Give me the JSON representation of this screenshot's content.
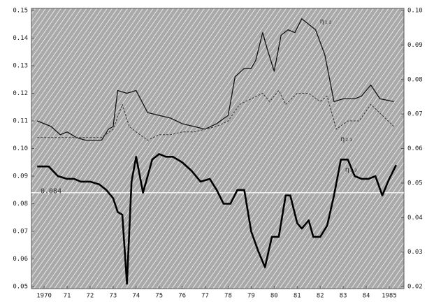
{
  "chart_data": {
    "type": "line",
    "xlim": [
      1969.45,
      1985.64
    ],
    "xticks": [
      1970,
      {
        "value": 1971,
        "label": "71"
      },
      {
        "value": 1972,
        "label": "72"
      },
      {
        "value": 1973,
        "label": "73"
      },
      {
        "value": 1974,
        "label": "74"
      },
      {
        "value": 1975,
        "label": "75"
      },
      {
        "value": 1976,
        "label": "76"
      },
      {
        "value": 1977,
        "label": "77"
      },
      {
        "value": 1978,
        "label": "78"
      },
      {
        "value": 1979,
        "label": "79"
      },
      {
        "value": 1980,
        "label": "80"
      },
      {
        "value": 1981,
        "label": "81"
      },
      {
        "value": 1982,
        "label": "82"
      },
      {
        "value": 1983,
        "label": "83"
      },
      {
        "value": 1984,
        "label": "84"
      },
      1985
    ],
    "ylim": [
      0.05,
      0.15
    ],
    "yticks": [
      0.05,
      0.06,
      0.07,
      0.08,
      0.09,
      {
        "value": 0.1,
        "label": "0.10"
      },
      0.11,
      0.12,
      0.13,
      0.14,
      0.15
    ],
    "y2lim": [
      0.02,
      0.1
    ],
    "y2ticks": [
      0.02,
      0.03,
      0.04,
      0.05,
      0.06,
      0.07,
      0.08,
      0.09,
      {
        "value": 0.1,
        "label": "0.10"
      }
    ],
    "reference_line": 0.084,
    "series": [
      {
        "name": "η₁₂",
        "color": "#111",
        "style": "solid",
        "width": 1.3,
        "x": [
          1969.7,
          1970.3,
          1970.7,
          1971,
          1971.4,
          1971.8,
          1972.5,
          1972.8,
          1973,
          1973.2,
          1973.6,
          1974,
          1974.5,
          1975,
          1975.5,
          1976,
          1976.5,
          1977,
          1977.5,
          1978,
          1978.3,
          1978.7,
          1979,
          1979.2,
          1979.5,
          1979.7,
          1980,
          1980.3,
          1980.6,
          1980.9,
          1981.2,
          1981.5,
          1981.8,
          1982.2,
          1982.6,
          1983,
          1983.5,
          1983.8,
          1984.2,
          1984.6,
          1985.2
        ],
        "values": [
          0.11,
          0.108,
          0.105,
          0.106,
          0.104,
          0.103,
          0.103,
          0.107,
          0.108,
          0.121,
          0.12,
          0.121,
          0.113,
          0.112,
          0.111,
          0.109,
          0.108,
          0.107,
          0.109,
          0.112,
          0.126,
          0.129,
          0.129,
          0.132,
          0.142,
          0.136,
          0.128,
          0.141,
          0.143,
          0.142,
          0.147,
          0.145,
          0.143,
          0.134,
          0.117,
          0.118,
          0.118,
          0.119,
          0.123,
          0.118,
          0.117
        ]
      },
      {
        "name": "η₂₁",
        "color": "#333",
        "style": "dashed",
        "width": 1,
        "x": [
          1969.7,
          1970.5,
          1971.5,
          1972.5,
          1973,
          1973.4,
          1973.7,
          1974,
          1974.5,
          1975,
          1975.5,
          1976,
          1976.5,
          1977,
          1977.5,
          1978,
          1978.5,
          1979,
          1979.5,
          1979.8,
          1980.2,
          1980.5,
          1981,
          1981.5,
          1982,
          1982.3,
          1982.7,
          1983.2,
          1983.7,
          1984.2,
          1984.7,
          1985.2
        ],
        "values": [
          0.104,
          0.104,
          0.104,
          0.104,
          0.107,
          0.116,
          0.108,
          0.106,
          0.103,
          0.105,
          0.105,
          0.106,
          0.106,
          0.107,
          0.108,
          0.11,
          0.116,
          0.118,
          0.12,
          0.117,
          0.121,
          0.116,
          0.12,
          0.12,
          0.117,
          0.119,
          0.107,
          0.11,
          0.11,
          0.116,
          0.112,
          0.108
        ]
      },
      {
        "name": "η₁₃",
        "color": "#000",
        "style": "solid",
        "width": 2.6,
        "x": [
          1969.7,
          1970.2,
          1970.6,
          1971,
          1971.3,
          1971.6,
          1972,
          1972.4,
          1972.7,
          1973,
          1973.2,
          1973.4,
          1973.6,
          1973.8,
          1974,
          1974.3,
          1974.7,
          1975,
          1975.3,
          1975.6,
          1976,
          1976.4,
          1976.8,
          1977.2,
          1977.5,
          1977.8,
          1978.1,
          1978.4,
          1978.7,
          1979,
          1979.3,
          1979.6,
          1979.9,
          1980.2,
          1980.5,
          1980.7,
          1981,
          1981.2,
          1981.5,
          1981.7,
          1982,
          1982.3,
          1982.6,
          1982.9,
          1983.2,
          1983.5,
          1983.8,
          1984.1,
          1984.4,
          1984.7,
          1985,
          1985.3
        ],
        "values": [
          0.0935,
          0.0935,
          0.09,
          0.089,
          0.089,
          0.088,
          0.088,
          0.087,
          0.085,
          0.082,
          0.077,
          0.076,
          0.051,
          0.088,
          0.097,
          0.084,
          0.096,
          0.098,
          0.097,
          0.097,
          0.095,
          0.092,
          0.088,
          0.089,
          0.085,
          0.08,
          0.08,
          0.085,
          0.085,
          0.07,
          0.063,
          0.057,
          0.068,
          0.068,
          0.083,
          0.083,
          0.073,
          0.071,
          0.074,
          0.068,
          0.068,
          0.072,
          0.083,
          0.096,
          0.096,
          0.09,
          0.089,
          0.089,
          0.09,
          0.083,
          0.089,
          0.094
        ]
      }
    ]
  }
}
